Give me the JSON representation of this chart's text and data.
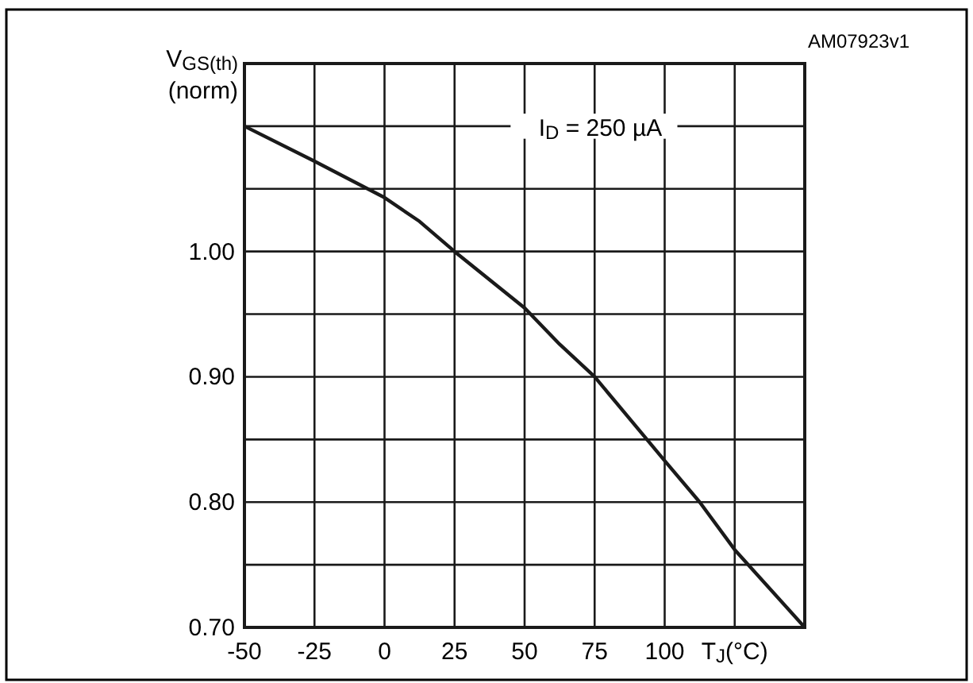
{
  "chart_data": {
    "type": "line",
    "xlabel": "T$_{J}$(°C)",
    "ylabel": "V$_{GS(th)}$\n(norm)",
    "annotations": [
      "I$_{D}$ = 250 µA",
      "AM07923v1"
    ],
    "x": [
      -50,
      -25,
      0,
      12.5,
      25,
      50,
      62.5,
      75,
      100,
      112.5,
      125,
      150
    ],
    "series": [
      {
        "color": "#1a1a1a",
        "values": [
          1.1,
          1.072,
          1.043,
          1.024,
          1.0,
          0.955,
          0.926,
          0.9,
          0.833,
          0.8,
          0.762,
          0.7
        ]
      }
    ],
    "xlim": [
      -50,
      150
    ],
    "xticks": [
      -50,
      -25,
      0,
      25,
      50,
      75,
      100,
      {
        "value": 125,
        "label": null
      },
      {
        "value": 150,
        "label": null
      }
    ],
    "ylim": [
      0.7,
      1.15
    ],
    "yticks": [
      {
        "value": 0.7,
        "label": "0.70"
      },
      {
        "value": 0.75,
        "label": null
      },
      {
        "value": 0.8,
        "label": "0.80"
      },
      {
        "value": 0.85,
        "label": null
      },
      {
        "value": 0.9,
        "label": "0.90"
      },
      {
        "value": 0.95,
        "label": null
      },
      {
        "value": 1.0,
        "label": "1.00"
      },
      {
        "value": 1.05,
        "label": null
      },
      {
        "value": 1.1,
        "label": null
      },
      {
        "value": 1.15,
        "label": null
      }
    ],
    "grid": true,
    "marker": "none",
    "line_style": "solid"
  }
}
